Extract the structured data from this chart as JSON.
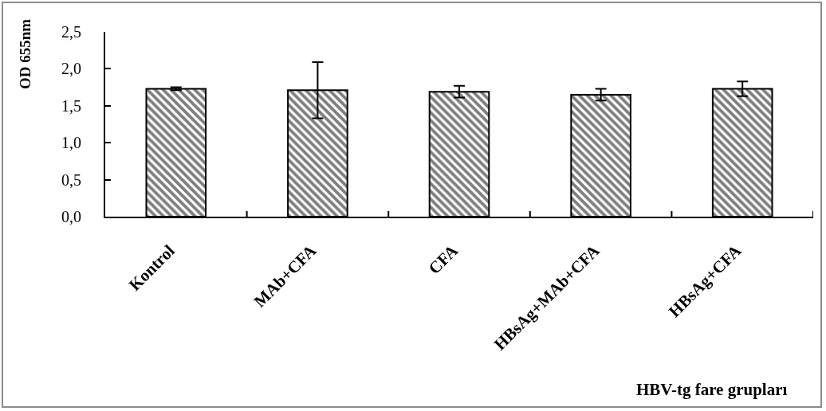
{
  "chart_data": {
    "type": "bar",
    "categories": [
      "Kontrol",
      "MAb+CFA",
      "CFA",
      "HBsAg+MAb+CFA",
      "HBsAg+CFA"
    ],
    "values": [
      1.73,
      1.71,
      1.69,
      1.65,
      1.73
    ],
    "errors": [
      0.02,
      0.38,
      0.08,
      0.08,
      0.1
    ],
    "color": "#000000",
    "ylabel": "OD 655nm",
    "annotations": [
      "HBV-tg fare grupları"
    ],
    "ylim": [
      0,
      2.5
    ],
    "yticks": [
      {
        "value": 0,
        "label": "0,0"
      },
      {
        "value": 0.5,
        "label": "0,5"
      },
      {
        "value": 1,
        "label": "1,0"
      },
      {
        "value": 1.5,
        "label": "1,5"
      },
      {
        "value": 2,
        "label": "2,0"
      },
      {
        "value": 2.5,
        "label": "2,5"
      }
    ]
  }
}
